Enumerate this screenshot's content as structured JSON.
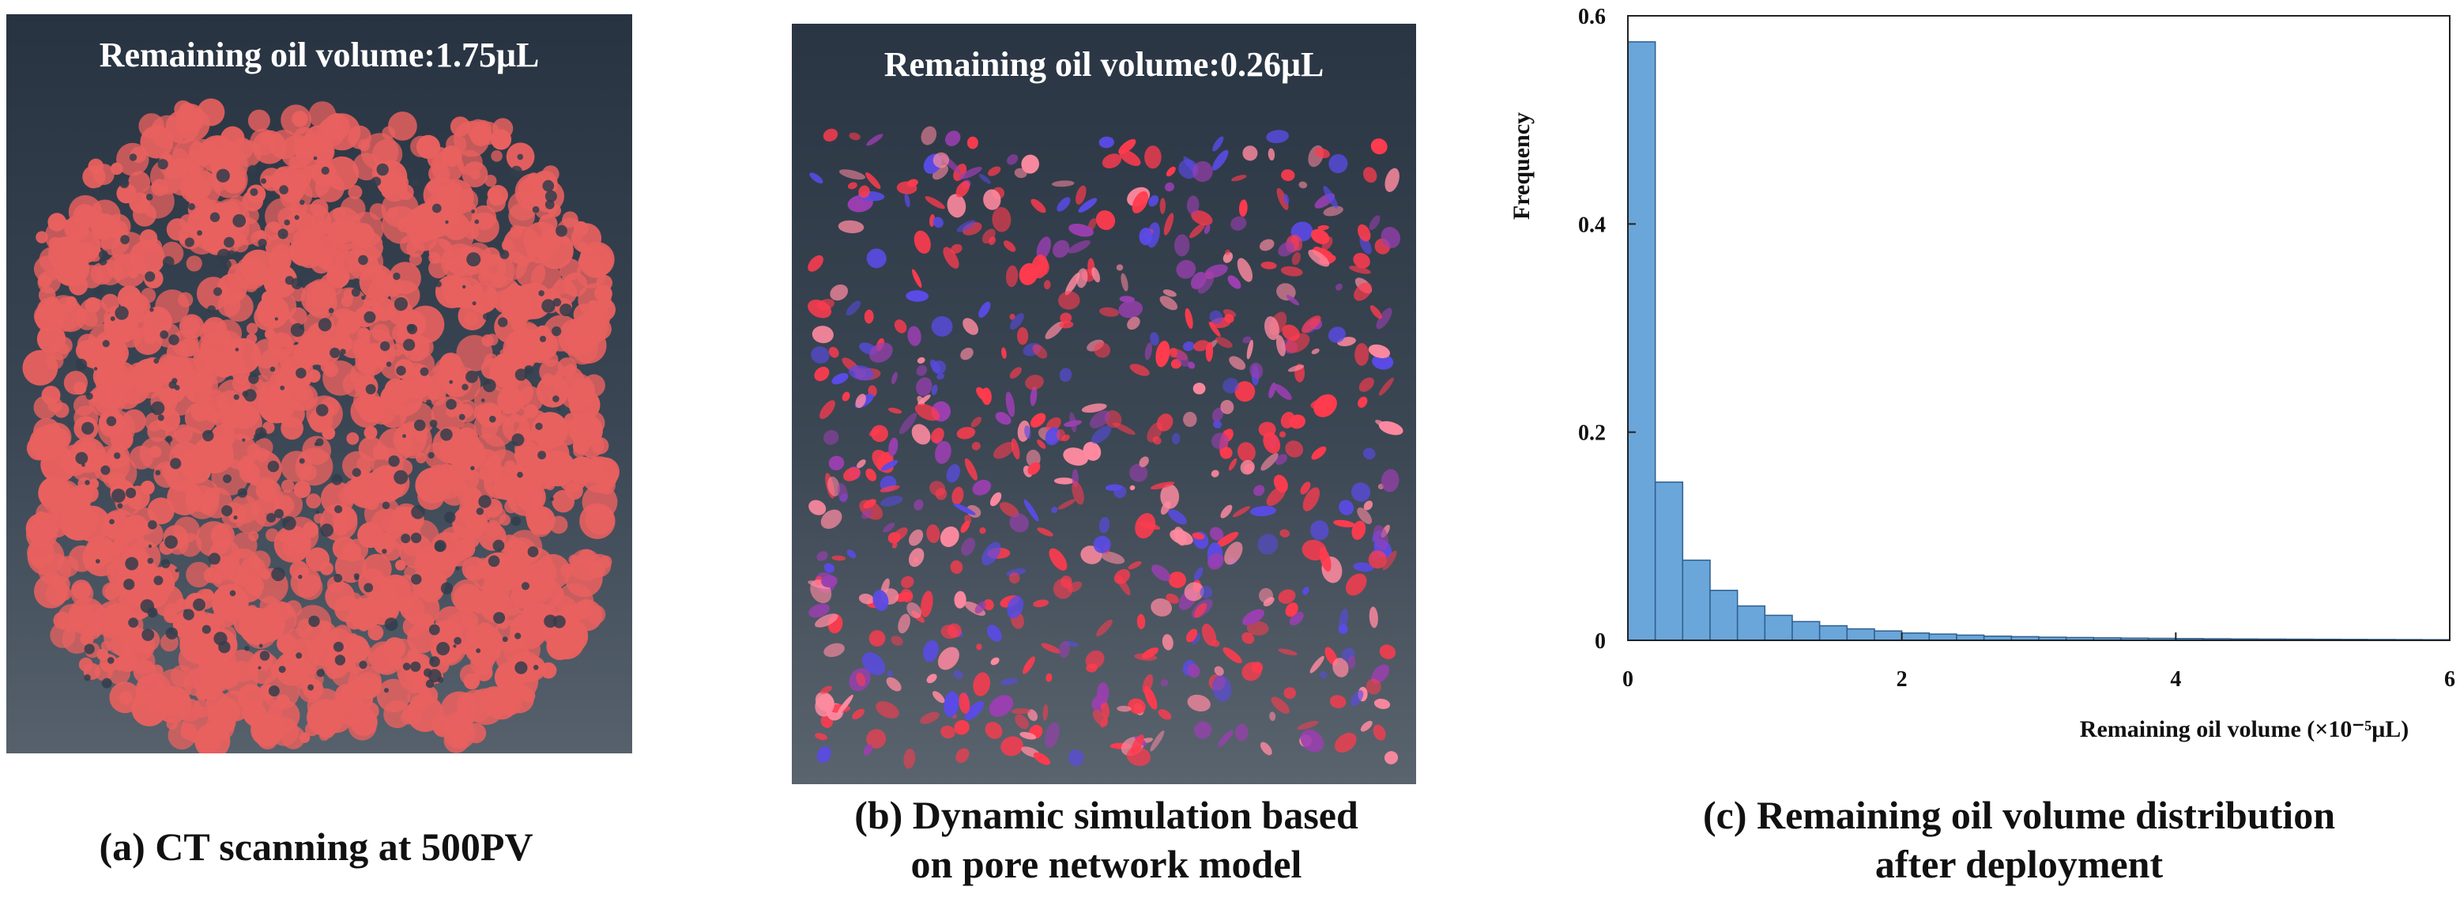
{
  "panels": {
    "a": {
      "image_label": "Remaining oil volume:1.75μL",
      "caption_line1": "(a) CT scanning at 500PV",
      "colors": {
        "oil": "#e8615f",
        "background": "#323d4b"
      }
    },
    "b": {
      "image_label": "Remaining oil volume:0.26μL",
      "caption_line1": "(b) Dynamic simulation based",
      "caption_line2": "on pore network model",
      "colors": {
        "oil_red": "#ff3b4e",
        "oil_pink": "#ff8aa0",
        "oil_blue": "#5a4be6",
        "background": "#343f4d"
      }
    },
    "c": {
      "caption_line1": "(c) Remaining oil volume distribution",
      "caption_line2": "after deployment"
    }
  },
  "chart_data": {
    "type": "bar",
    "title": "",
    "xlabel": "Remaining  oil  volume  (×10⁻⁵μL)",
    "ylabel": "Frequency",
    "xlim": [
      0,
      6
    ],
    "ylim": [
      0,
      0.6
    ],
    "xticks": [
      0,
      2,
      4,
      6
    ],
    "yticks": [
      0,
      0.2,
      0.4,
      0.6
    ],
    "bin_width": 0.2,
    "bin_starts": [
      0,
      0.2,
      0.4,
      0.6,
      0.8,
      1.0,
      1.2,
      1.4,
      1.6,
      1.8,
      2.0,
      2.2,
      2.4,
      2.6,
      2.8,
      3.0,
      3.2,
      3.4,
      3.6,
      3.8,
      4.0,
      4.2,
      4.4,
      4.6,
      4.8,
      5.0,
      5.2,
      5.4,
      5.6,
      5.8
    ],
    "values": [
      0.575,
      0.152,
      0.077,
      0.048,
      0.033,
      0.024,
      0.018,
      0.014,
      0.011,
      0.009,
      0.007,
      0.006,
      0.005,
      0.004,
      0.0035,
      0.003,
      0.0027,
      0.0024,
      0.0021,
      0.0019,
      0.0017,
      0.0015,
      0.0013,
      0.0012,
      0.0011,
      0.001,
      0.0009,
      0.0008,
      0.0007,
      0.0006
    ],
    "bar_color": "#6aa6d9",
    "bar_edge_color": "#2f5f8f",
    "grid": false,
    "legend": "none"
  }
}
